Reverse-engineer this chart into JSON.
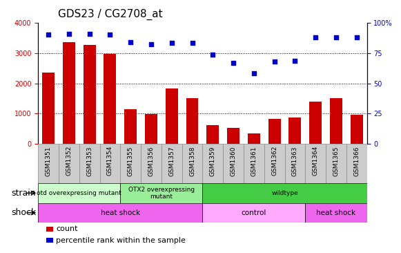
{
  "title": "GDS23 / CG2708_at",
  "categories": [
    "GSM1351",
    "GSM1352",
    "GSM1353",
    "GSM1354",
    "GSM1355",
    "GSM1356",
    "GSM1357",
    "GSM1358",
    "GSM1359",
    "GSM1360",
    "GSM1361",
    "GSM1362",
    "GSM1363",
    "GSM1364",
    "GSM1365",
    "GSM1366"
  ],
  "counts": [
    2350,
    3370,
    3270,
    2980,
    1150,
    980,
    1840,
    1510,
    620,
    530,
    340,
    820,
    870,
    1390,
    1510,
    970
  ],
  "percentiles": [
    3620,
    3630,
    3630,
    3610,
    3370,
    3295,
    3345,
    3335,
    2950,
    2680,
    2330,
    2730,
    2750,
    3530,
    3520,
    3510
  ],
  "ylim_left": [
    0,
    4000
  ],
  "ylim_right": [
    0,
    100
  ],
  "yticks_left": [
    0,
    1000,
    2000,
    3000,
    4000
  ],
  "yticks_right": [
    0,
    25,
    50,
    75,
    100
  ],
  "bar_color": "#cc0000",
  "dot_color": "#0000cc",
  "strain_labels": [
    {
      "label": "otd overexpressing mutant",
      "start": 0,
      "end": 4,
      "color": "#ccffcc"
    },
    {
      "label": "OTX2 overexpressing\nmutant",
      "start": 4,
      "end": 8,
      "color": "#99ee99"
    },
    {
      "label": "wildtype",
      "start": 8,
      "end": 16,
      "color": "#44cc44"
    }
  ],
  "shock_labels": [
    {
      "label": "heat shock",
      "start": 0,
      "end": 8,
      "color": "#ee66ee"
    },
    {
      "label": "control",
      "start": 8,
      "end": 13,
      "color": "#ffaaff"
    },
    {
      "label": "heat shock",
      "start": 13,
      "end": 16,
      "color": "#ee66ee"
    }
  ],
  "legend_items": [
    {
      "color": "#cc0000",
      "label": "count"
    },
    {
      "color": "#0000cc",
      "label": "percentile rank within the sample"
    }
  ],
  "tick_bg_color": "#cccccc",
  "tick_border_color": "#888888",
  "title_fontsize": 11,
  "tick_fontsize": 6.5,
  "row_label_fontsize": 9,
  "legend_fontsize": 8,
  "grid_color": "#000000"
}
